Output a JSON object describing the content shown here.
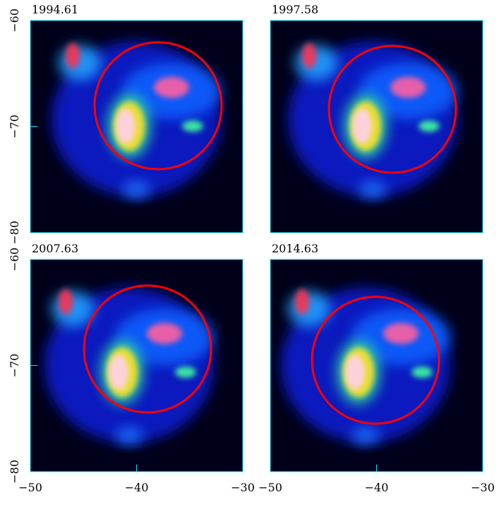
{
  "chart_data": [
    {
      "type": "image",
      "title": "1994.61",
      "xlim": [
        -50,
        -30
      ],
      "ylim": [
        -80,
        -60
      ],
      "yticks": [
        {
          "value": -60,
          "label": "−60"
        },
        {
          "value": -70,
          "label": "−70"
        },
        {
          "value": -80,
          "label": "−80"
        }
      ]
    },
    {
      "type": "image",
      "title": "1997.58",
      "xlim": [
        -50,
        -30
      ],
      "ylim": [
        -80,
        -60
      ]
    },
    {
      "type": "image",
      "title": "2007.63",
      "xlim": [
        -50,
        -30
      ],
      "ylim": [
        -80,
        -60
      ],
      "xticks": [
        {
          "value": -50,
          "label": "−50"
        },
        {
          "value": -40,
          "label": "−40"
        },
        {
          "value": -30,
          "label": "−30"
        }
      ],
      "yticks": [
        {
          "value": -60,
          "label": "−60"
        },
        {
          "value": -70,
          "label": "−70"
        },
        {
          "value": -80,
          "label": "−80"
        }
      ]
    },
    {
      "type": "image",
      "title": "2014.63",
      "xlim": [
        -50,
        -30
      ],
      "ylim": [
        -80,
        -60
      ],
      "xticks": [
        {
          "value": -50,
          "label": "−50"
        },
        {
          "value": -40,
          "label": "−40"
        },
        {
          "value": -30,
          "label": "−30"
        }
      ]
    }
  ]
}
